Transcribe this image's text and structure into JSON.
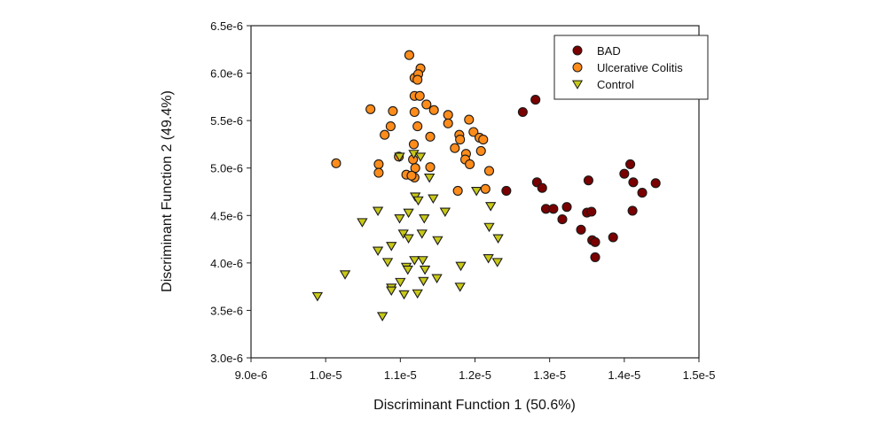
{
  "chart_data": {
    "type": "scatter",
    "title": "",
    "xlabel": "Discriminant Function 1 (50.6%)",
    "ylabel": "Discriminant Function 2 (49.4%)",
    "xlim": [
      9e-06,
      1.5e-05
    ],
    "ylim": [
      3e-06,
      6.5e-06
    ],
    "x_ticks": [
      9e-06,
      1e-05,
      1.1e-05,
      1.2e-05,
      1.3e-05,
      1.4e-05,
      1.5e-05
    ],
    "x_tick_labels": [
      "9.0e-6",
      "1.0e-5",
      "1.1e-5",
      "1.2e-5",
      "1.3e-5",
      "1.4e-5",
      "1.5e-5"
    ],
    "y_ticks": [
      3e-06,
      3.5e-06,
      4e-06,
      4.5e-06,
      5e-06,
      5.5e-06,
      6e-06,
      6.5e-06
    ],
    "y_tick_labels": [
      "3.0e-6",
      "3.5e-6",
      "4.0e-6",
      "4.5e-6",
      "5.0e-6",
      "5.5e-6",
      "6.0e-6",
      "6.5e-6"
    ],
    "grid": false,
    "legend_position": "top-right",
    "units_note": "point values below are in units of 1e-6",
    "series": [
      {
        "name": "BAD",
        "marker": "circle",
        "color": "#7a0000",
        "points": [
          [
            12.81,
            5.72
          ],
          [
            12.64,
            5.59
          ],
          [
            12.42,
            4.76
          ],
          [
            12.83,
            4.85
          ],
          [
            12.9,
            4.79
          ],
          [
            12.95,
            4.57
          ],
          [
            13.05,
            4.57
          ],
          [
            13.23,
            4.59
          ],
          [
            13.17,
            4.46
          ],
          [
            13.52,
            4.87
          ],
          [
            13.5,
            4.53
          ],
          [
            13.56,
            4.54
          ],
          [
            13.42,
            4.35
          ],
          [
            13.57,
            4.24
          ],
          [
            13.61,
            4.22
          ],
          [
            13.61,
            4.06
          ],
          [
            13.85,
            4.27
          ],
          [
            14.08,
            5.04
          ],
          [
            14.0,
            4.94
          ],
          [
            14.12,
            4.85
          ],
          [
            14.42,
            4.84
          ],
          [
            14.24,
            4.74
          ],
          [
            14.11,
            4.55
          ]
        ]
      },
      {
        "name": "Ulcerative Colitis",
        "marker": "circle",
        "color": "#ff8c1a",
        "points": [
          [
            11.12,
            6.19
          ],
          [
            11.27,
            6.05
          ],
          [
            11.19,
            5.95
          ],
          [
            11.24,
            5.99
          ],
          [
            11.23,
            5.93
          ],
          [
            11.19,
            5.76
          ],
          [
            11.26,
            5.76
          ],
          [
            11.35,
            5.67
          ],
          [
            11.45,
            5.61
          ],
          [
            10.6,
            5.62
          ],
          [
            10.9,
            5.6
          ],
          [
            11.19,
            5.59
          ],
          [
            10.87,
            5.44
          ],
          [
            10.79,
            5.35
          ],
          [
            11.23,
            5.44
          ],
          [
            11.4,
            5.33
          ],
          [
            11.18,
            5.25
          ],
          [
            10.98,
            5.12
          ],
          [
            11.17,
            5.09
          ],
          [
            10.14,
            5.05
          ],
          [
            10.71,
            5.04
          ],
          [
            10.71,
            4.95
          ],
          [
            11.2,
            5.0
          ],
          [
            11.08,
            4.93
          ],
          [
            11.19,
            4.9
          ],
          [
            11.4,
            5.01
          ],
          [
            11.64,
            5.56
          ],
          [
            11.64,
            5.47
          ],
          [
            11.92,
            5.51
          ],
          [
            11.79,
            5.35
          ],
          [
            11.8,
            5.3
          ],
          [
            11.98,
            5.38
          ],
          [
            12.06,
            5.32
          ],
          [
            12.11,
            5.3
          ],
          [
            11.73,
            5.21
          ],
          [
            11.88,
            5.15
          ],
          [
            11.87,
            5.09
          ],
          [
            11.93,
            5.04
          ],
          [
            12.08,
            5.18
          ],
          [
            12.19,
            4.97
          ],
          [
            11.77,
            4.76
          ],
          [
            12.14,
            4.78
          ],
          [
            11.15,
            4.92
          ]
        ]
      },
      {
        "name": "Control",
        "marker": "triangle-down",
        "color": "#c8c818",
        "points": [
          [
            10.99,
            5.12
          ],
          [
            11.18,
            5.15
          ],
          [
            11.27,
            5.12
          ],
          [
            11.39,
            4.9
          ],
          [
            11.2,
            4.7
          ],
          [
            11.24,
            4.66
          ],
          [
            11.44,
            4.68
          ],
          [
            11.6,
            4.54
          ],
          [
            11.11,
            4.53
          ],
          [
            10.99,
            4.47
          ],
          [
            11.32,
            4.47
          ],
          [
            10.7,
            4.55
          ],
          [
            10.49,
            4.43
          ],
          [
            11.04,
            4.31
          ],
          [
            11.11,
            4.26
          ],
          [
            11.29,
            4.31
          ],
          [
            11.5,
            4.24
          ],
          [
            10.7,
            4.13
          ],
          [
            10.88,
            4.18
          ],
          [
            10.83,
            4.01
          ],
          [
            10.26,
            3.88
          ],
          [
            9.89,
            3.65
          ],
          [
            11.08,
            3.96
          ],
          [
            11.1,
            3.93
          ],
          [
            11.19,
            4.03
          ],
          [
            11.3,
            4.03
          ],
          [
            11.33,
            3.93
          ],
          [
            11.0,
            3.8
          ],
          [
            11.31,
            3.81
          ],
          [
            11.49,
            3.84
          ],
          [
            10.88,
            3.74
          ],
          [
            10.88,
            3.71
          ],
          [
            11.05,
            3.67
          ],
          [
            11.23,
            3.68
          ],
          [
            10.76,
            3.44
          ],
          [
            12.02,
            4.76
          ],
          [
            12.21,
            4.6
          ],
          [
            12.19,
            4.38
          ],
          [
            12.31,
            4.26
          ],
          [
            12.18,
            4.05
          ],
          [
            12.3,
            4.01
          ],
          [
            11.81,
            3.97
          ],
          [
            11.8,
            3.75
          ]
        ]
      }
    ]
  }
}
